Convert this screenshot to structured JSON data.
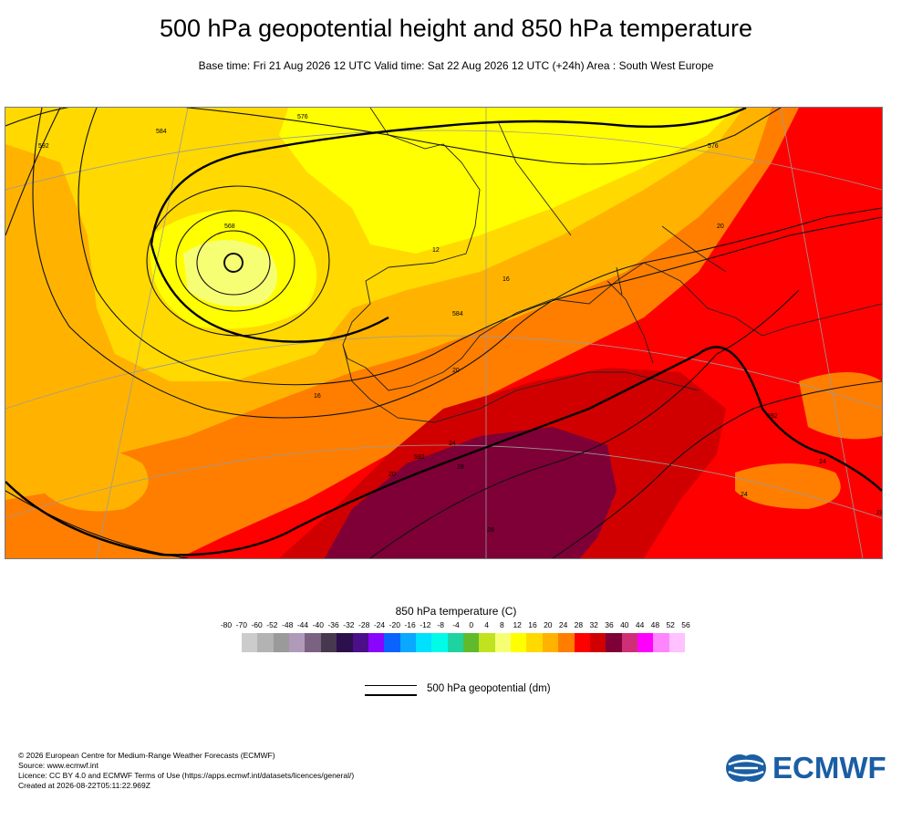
{
  "title": "500 hPa geopotential height and 850 hPa temperature",
  "subtitle": "Base time: Fri 21 Aug 2026 12 UTC Valid time: Sat 22 Aug 2026 12 UTC (+24h) Area : South West Europe",
  "map": {
    "contour_labels": [
      "576",
      "584",
      "592",
      "568",
      "576",
      "584",
      "592",
      "592",
      "12",
      "16",
      "16",
      "20",
      "20",
      "20",
      "24",
      "24",
      "24",
      "28",
      "28",
      "28",
      "28"
    ]
  },
  "legend": {
    "title": "850 hPa temperature (C)",
    "ticks": [
      "-80",
      "-70",
      "-60",
      "-52",
      "-48",
      "-44",
      "-40",
      "-36",
      "-32",
      "-28",
      "-24",
      "-20",
      "-16",
      "-12",
      "-8",
      "-4",
      "0",
      "4",
      "8",
      "12",
      "16",
      "20",
      "24",
      "28",
      "32",
      "36",
      "40",
      "44",
      "48",
      "52",
      "56"
    ],
    "colors": [
      "#e6e6e6",
      "#cccccc",
      "#b3b3b3",
      "#9a9a9a",
      "#b09aba",
      "#7b6283",
      "#48384f",
      "#2c0f4d",
      "#4b0f8a",
      "#8a05ff",
      "#0a62ff",
      "#0aa8ff",
      "#00e1ff",
      "#00fbe9",
      "#1ed2a1",
      "#5fbb2c",
      "#c1e21f",
      "#f6ff74",
      "#ffff00",
      "#ffd900",
      "#ffb300",
      "#ff7e00",
      "#ff0000",
      "#d10000",
      "#7e0036",
      "#ce2f77",
      "#ff00ff",
      "#ff85ff",
      "#ffc1ff",
      "#e5c6e5",
      "#e6e6e6"
    ]
  },
  "geopotential_legend": {
    "label": "500 hPa geopotential (dm)"
  },
  "footer": {
    "line1": "© 2026 European Centre for Medium-Range Weather Forecasts (ECMWF)",
    "line2": "Source: www.ecmwf.int",
    "line3": "Licence: CC BY 4.0 and ECMWF Terms of Use (https://apps.ecmwf.int/datasets/licences/general/)",
    "line4": "Created at 2026-08-22T05:11:22.969Z"
  },
  "logo": {
    "text": "ECMWF",
    "color": "#1a5ea3"
  }
}
